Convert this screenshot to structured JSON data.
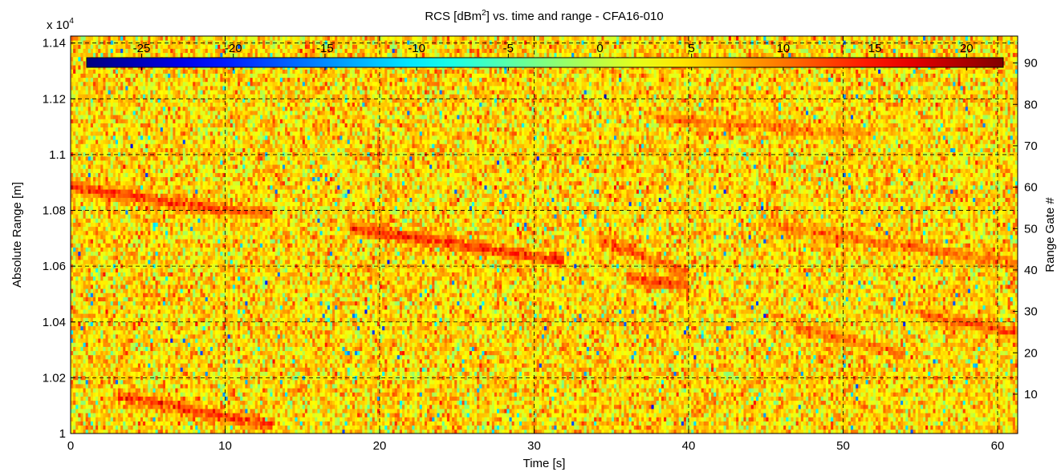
{
  "chart_data": {
    "type": "heatmap",
    "title": "RCS [dBm",
    "title_sup": "2",
    "title_rest": "] vs. time and range - CFA16-010",
    "xlabel": "Time [s]",
    "ylabel": "Absolute Range [m]",
    "ylabel_right": "Range Gate #",
    "y_multiplier": "x 10",
    "y_multiplier_exp": "4",
    "xlim": [
      0,
      61.3
    ],
    "ylim": [
      1.0,
      1.1425
    ],
    "y_right_lim": [
      0.5,
      96.5
    ],
    "x_ticks": [
      0,
      10,
      20,
      30,
      40,
      50,
      60
    ],
    "y_ticks": [
      1,
      1.02,
      1.04,
      1.06,
      1.08,
      1.1,
      1.12,
      1.14
    ],
    "y_right_ticks": [
      10,
      20,
      30,
      40,
      50,
      60,
      70,
      80,
      90
    ],
    "colorbar": {
      "location": "top-inside",
      "colormap": "jet",
      "range": [
        -28,
        22
      ],
      "ticks": [
        -25,
        -20,
        -15,
        -10,
        -5,
        0,
        5,
        10,
        15,
        20
      ]
    },
    "grid": true,
    "gridline_style": "dashed",
    "value_distribution": "mostly 0 to 10 dBm^2 noise, values span about -28 to 22",
    "tracks": [
      {
        "x": [
          0,
          9.8
        ],
        "y": [
          1.0886,
          1.0803
        ],
        "peak": 13
      },
      {
        "x": [
          9.8,
          13
        ],
        "y": [
          1.0803,
          1.079
        ],
        "peak": 11
      },
      {
        "x": [
          18,
          32
        ],
        "y": [
          1.074,
          1.062
        ],
        "peak": 14
      },
      {
        "x": [
          3,
          13
        ],
        "y": [
          1.014,
          1.003
        ],
        "peak": 13
      },
      {
        "x": [
          34,
          40
        ],
        "y": [
          1.07,
          1.058
        ],
        "peak": 11
      },
      {
        "x": [
          36,
          40
        ],
        "y": [
          1.056,
          1.053
        ],
        "peak": 13
      },
      {
        "x": [
          47,
          54
        ],
        "y": [
          1.038,
          1.0285
        ],
        "peak": 10
      },
      {
        "x": [
          55,
          61.3
        ],
        "y": [
          1.043,
          1.036
        ],
        "peak": 11
      },
      {
        "x": [
          38,
          52
        ],
        "y": [
          1.113,
          1.107
        ],
        "peak": 9
      },
      {
        "x": [
          45,
          61.3
        ],
        "y": [
          1.075,
          1.061
        ],
        "peak": 10
      }
    ]
  }
}
